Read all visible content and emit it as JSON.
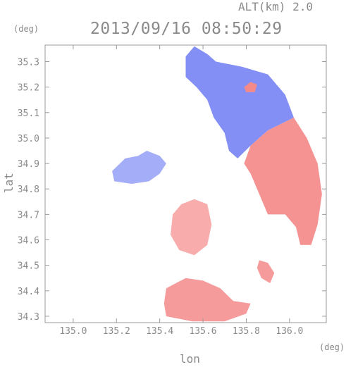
{
  "header": {
    "altitude_label": "ALT(km) 2.0",
    "timestamp": "2013/09/16 08:50:29"
  },
  "chart_data": {
    "type": "heatmap",
    "title": "2013/09/16 08:50:29",
    "subtitle": "ALT(km) 2.0",
    "xlabel": "lon",
    "ylabel": "lat",
    "x_unit": "(deg)",
    "y_unit": "(deg)",
    "xlim": [
      134.87,
      136.17
    ],
    "ylim": [
      34.275,
      35.365
    ],
    "x_ticks": [
      "135.0",
      "135.2",
      "135.4",
      "135.6",
      "135.8",
      "136.0"
    ],
    "x_tick_values": [
      135.0,
      135.2,
      135.4,
      135.6,
      135.8,
      136.0
    ],
    "y_ticks": [
      "35.3",
      "35.2",
      "35.1",
      "35.0",
      "34.9",
      "34.8",
      "34.7",
      "34.6",
      "34.5",
      "34.4",
      "34.3"
    ],
    "y_tick_values": [
      35.3,
      35.2,
      35.1,
      35.0,
      34.9,
      34.8,
      34.7,
      34.6,
      34.5,
      34.4,
      34.3
    ],
    "grid": false,
    "colors": {
      "negative": "#5a6af0",
      "positive": "#f05858",
      "frame": "#9a9a9a"
    },
    "regions": [
      {
        "name": "north-blue-sector",
        "sign": "negative",
        "intensity": 0.75,
        "polygon": [
          [
            135.56,
            35.36
          ],
          [
            135.62,
            35.33
          ],
          [
            135.66,
            35.3
          ],
          [
            135.78,
            35.28
          ],
          [
            135.9,
            35.25
          ],
          [
            135.98,
            35.17
          ],
          [
            136.02,
            35.08
          ],
          [
            135.9,
            35.03
          ],
          [
            135.82,
            34.97
          ],
          [
            135.76,
            34.92
          ],
          [
            135.72,
            34.95
          ],
          [
            135.7,
            35.02
          ],
          [
            135.65,
            35.08
          ],
          [
            135.62,
            35.15
          ],
          [
            135.57,
            35.2
          ],
          [
            135.52,
            35.24
          ],
          [
            135.52,
            35.32
          ]
        ]
      },
      {
        "name": "east-red-sector",
        "sign": "positive",
        "intensity": 0.65,
        "polygon": [
          [
            135.9,
            35.03
          ],
          [
            136.02,
            35.08
          ],
          [
            136.08,
            35.0
          ],
          [
            136.13,
            34.9
          ],
          [
            136.15,
            34.78
          ],
          [
            136.13,
            34.66
          ],
          [
            136.1,
            34.58
          ],
          [
            136.05,
            34.58
          ],
          [
            136.03,
            34.65
          ],
          [
            135.98,
            34.7
          ],
          [
            135.9,
            34.7
          ],
          [
            135.86,
            34.78
          ],
          [
            135.82,
            34.86
          ],
          [
            135.79,
            34.9
          ],
          [
            135.82,
            34.97
          ]
        ]
      },
      {
        "name": "northeast-red-spot",
        "sign": "positive",
        "intensity": 0.7,
        "polygon": [
          [
            135.79,
            35.2
          ],
          [
            135.82,
            35.22
          ],
          [
            135.85,
            35.21
          ],
          [
            135.84,
            35.18
          ],
          [
            135.8,
            35.18
          ]
        ]
      },
      {
        "name": "west-blue-cell",
        "sign": "negative",
        "intensity": 0.55,
        "polygon": [
          [
            135.24,
            34.92
          ],
          [
            135.3,
            34.93
          ],
          [
            135.34,
            34.95
          ],
          [
            135.4,
            34.93
          ],
          [
            135.43,
            34.9
          ],
          [
            135.4,
            34.86
          ],
          [
            135.35,
            34.83
          ],
          [
            135.27,
            34.82
          ],
          [
            135.19,
            34.83
          ],
          [
            135.18,
            34.87
          ]
        ]
      },
      {
        "name": "central-red-cell",
        "sign": "positive",
        "intensity": 0.5,
        "polygon": [
          [
            135.5,
            34.74
          ],
          [
            135.56,
            34.76
          ],
          [
            135.62,
            34.74
          ],
          [
            135.64,
            34.66
          ],
          [
            135.62,
            34.58
          ],
          [
            135.56,
            34.54
          ],
          [
            135.49,
            34.56
          ],
          [
            135.45,
            34.62
          ],
          [
            135.46,
            34.7
          ]
        ]
      },
      {
        "name": "southeast-red-cell",
        "sign": "positive",
        "intensity": 0.6,
        "polygon": [
          [
            135.86,
            34.52
          ],
          [
            135.9,
            34.51
          ],
          [
            135.93,
            34.47
          ],
          [
            135.91,
            34.43
          ],
          [
            135.87,
            34.45
          ],
          [
            135.85,
            34.49
          ]
        ]
      },
      {
        "name": "south-red-band",
        "sign": "positive",
        "intensity": 0.6,
        "polygon": [
          [
            135.43,
            34.41
          ],
          [
            135.52,
            34.45
          ],
          [
            135.6,
            34.44
          ],
          [
            135.68,
            34.41
          ],
          [
            135.74,
            34.36
          ],
          [
            135.82,
            34.35
          ],
          [
            135.8,
            34.31
          ],
          [
            135.7,
            34.28
          ],
          [
            135.55,
            34.28
          ],
          [
            135.43,
            34.3
          ],
          [
            135.42,
            34.35
          ]
        ]
      }
    ]
  }
}
